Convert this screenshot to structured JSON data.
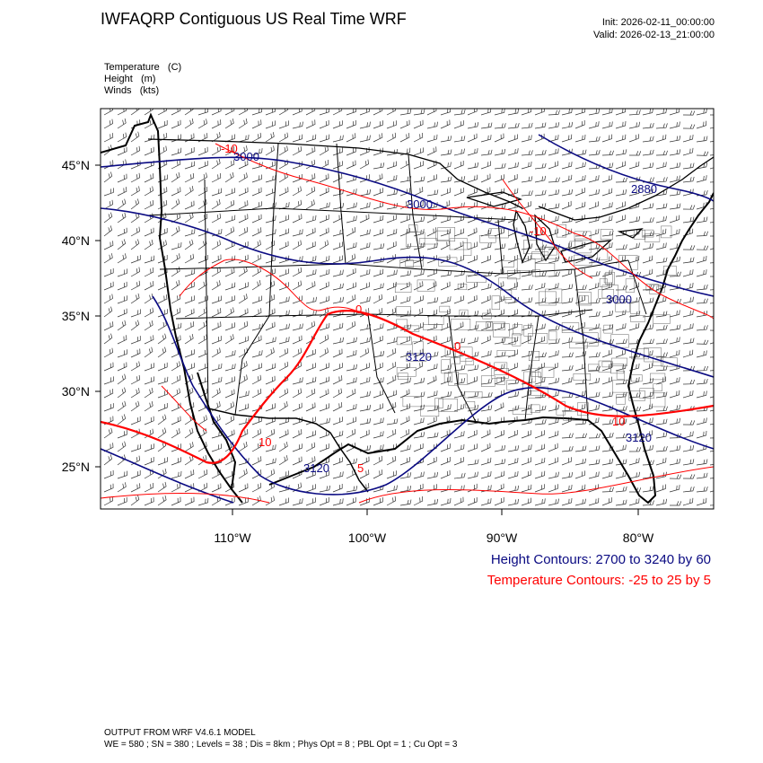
{
  "header": {
    "title": "IWFAQRP Contiguous US Real Time WRF",
    "init": "Init: 2026-02-11_00:00:00",
    "valid": "Valid: 2026-02-13_21:00:00"
  },
  "fields": [
    "Temperature   (C)",
    "Height   (m)",
    "Winds   (kts)"
  ],
  "axes": {
    "lat_labels": [
      "45°N",
      "40°N",
      "35°N",
      "30°N",
      "25°N"
    ],
    "lon_labels": [
      "110°W",
      "100°W",
      "90°W",
      "80°W"
    ]
  },
  "contour_labels": {
    "height": [
      "3000",
      "3000",
      "2880",
      "3000",
      "3120",
      "3120",
      "3120"
    ],
    "temperature": [
      "-10",
      "0",
      "-10",
      "0",
      "5",
      "10",
      "10"
    ]
  },
  "legend": {
    "height": "Height Contours: 2700 to 3240 by 60",
    "temperature": "Temperature Contours: -25 to 25 by 5",
    "height_color": "#0a0a82",
    "temperature_color": "#ff0000"
  },
  "footer": {
    "line1": "OUTPUT FROM WRF V4.6.1 MODEL",
    "line2": "WE = 580 ; SN = 380 ; Levels = 38 ; Dis = 8km ; Phys Opt = 8 ; PBL Opt = 1 ; Cu Opt = 3"
  }
}
